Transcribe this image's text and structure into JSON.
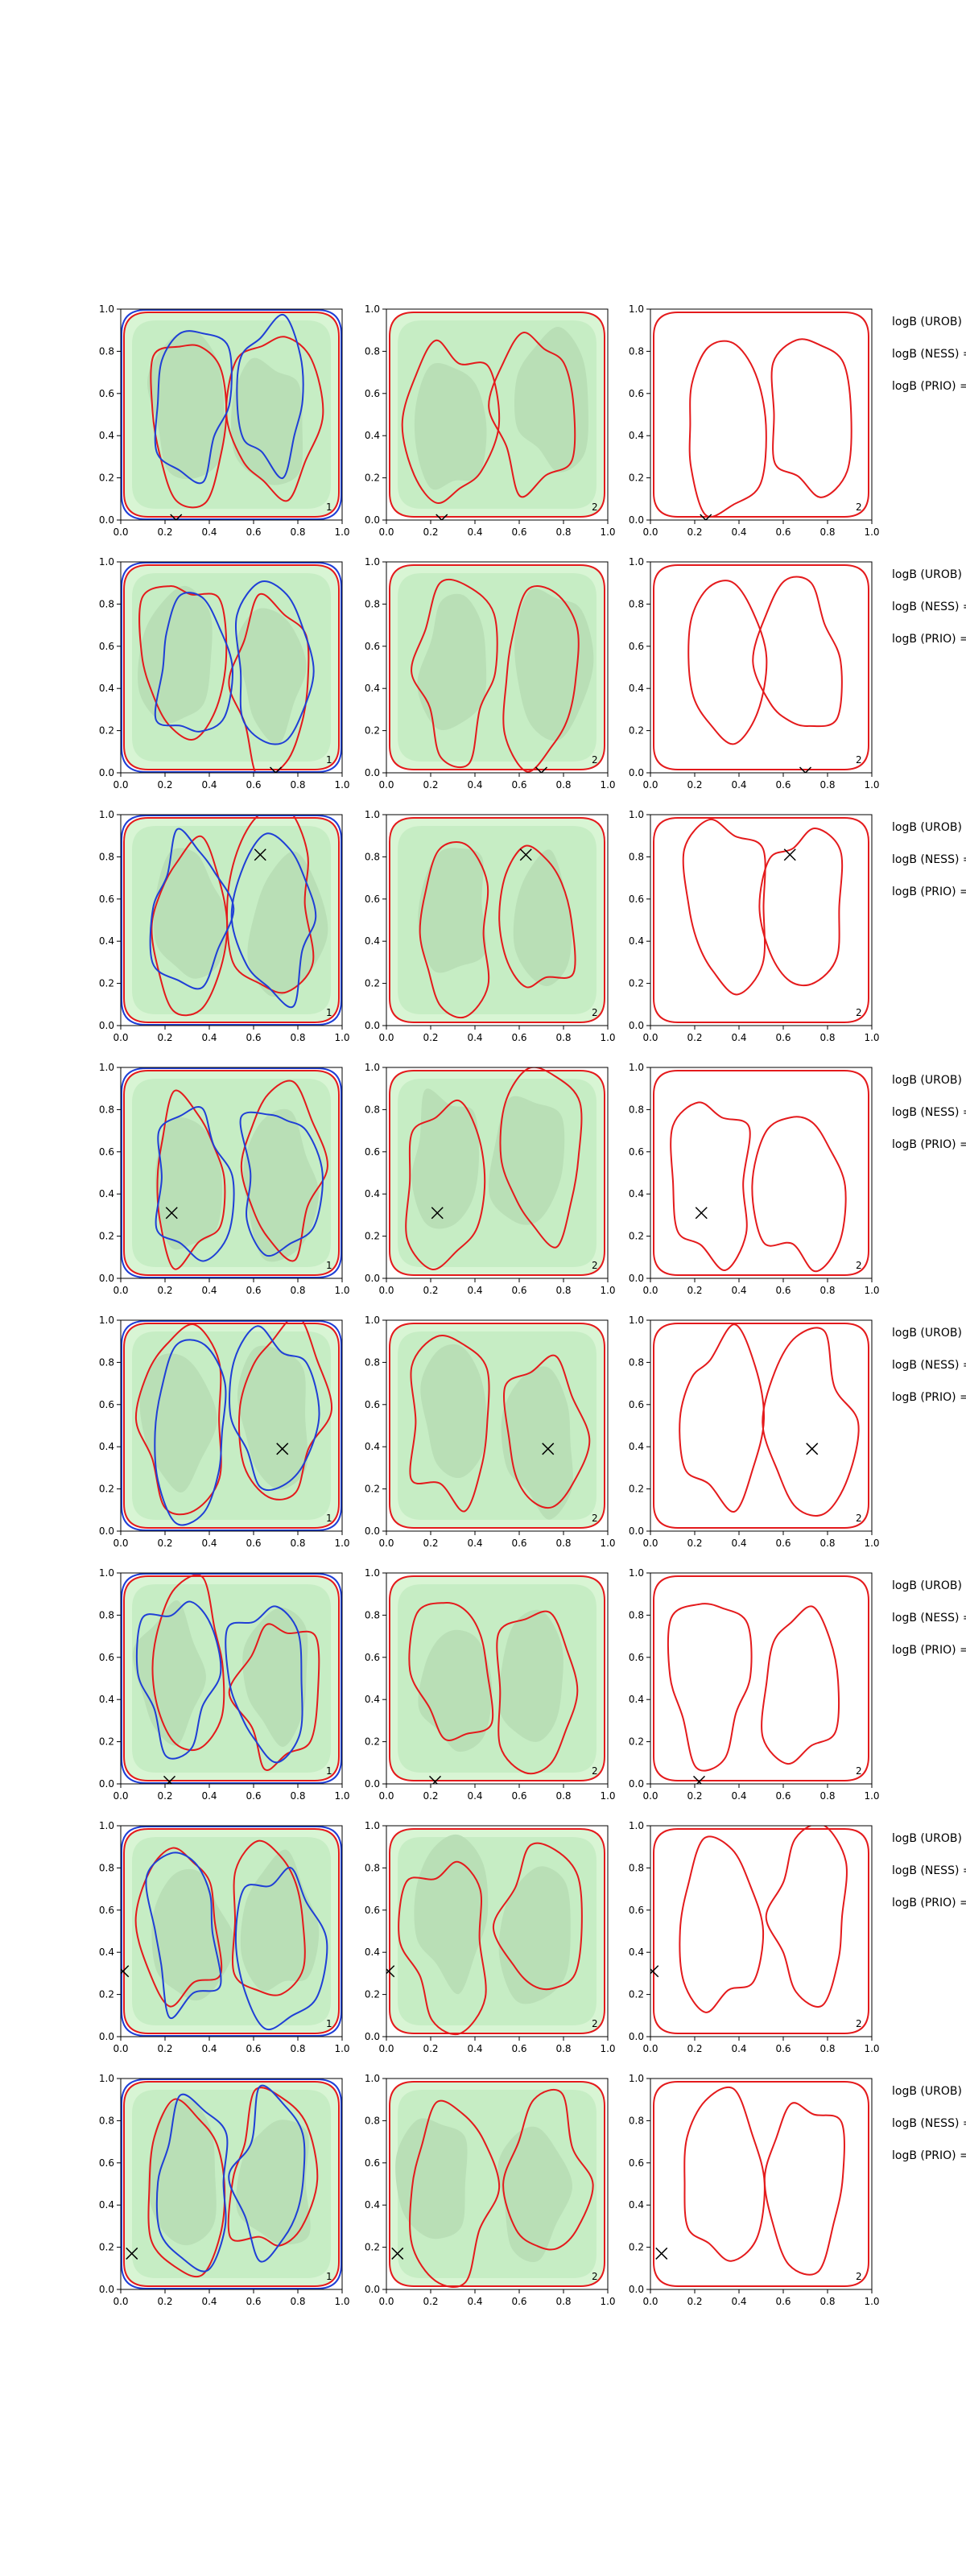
{
  "chart_data": {
    "type": "contour-grid",
    "rows": 8,
    "columns": 3,
    "xlim": [
      0,
      1
    ],
    "ylim": [
      0,
      1
    ],
    "x_ticks": [
      "0.0",
      "0.2",
      "0.4",
      "0.6",
      "0.8",
      "1.0"
    ],
    "y_ticks": [
      "0.0",
      "0.2",
      "0.4",
      "0.6",
      "0.8",
      "1.0"
    ],
    "grid": false,
    "colors": {
      "fill_light": "#d8f5d4",
      "fill_mid": "#bfe9bd",
      "fill_dark": "#b7ddb5",
      "contour_red": "#e41a1c",
      "contour_blue": "#1f3fd6",
      "marker": "#000000"
    },
    "side_labels": [
      "logB (UROB) =",
      "logB (NESS) =",
      "logB (PRIO) ="
    ],
    "panel_numbers": [
      "1",
      "2",
      "2"
    ],
    "markers": [
      {
        "x": 0.25,
        "y": 0.0
      },
      {
        "x": 0.7,
        "y": 0.0
      },
      {
        "x": 0.63,
        "y": 0.81
      },
      {
        "x": 0.23,
        "y": 0.31
      },
      {
        "x": 0.73,
        "y": 0.39
      },
      {
        "x": 0.22,
        "y": 0.01
      },
      {
        "x": 0.01,
        "y": 0.31
      },
      {
        "x": 0.05,
        "y": 0.17
      }
    ]
  }
}
